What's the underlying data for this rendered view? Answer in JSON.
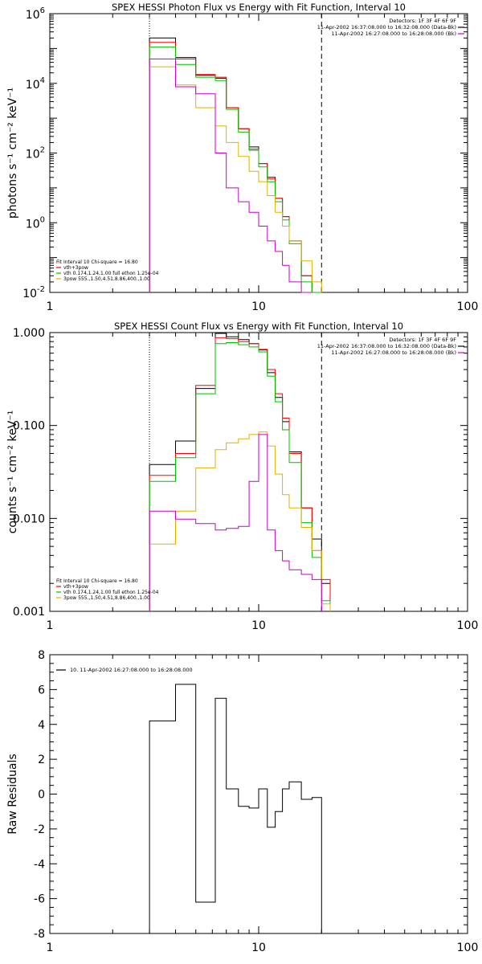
{
  "colors": {
    "black": "#000000",
    "red": "#ff0000",
    "green": "#00c000",
    "yellow": "#e0b000",
    "magenta": "#c800c8"
  },
  "chart_data": [
    {
      "type": "line",
      "title": "SPEX HESSI Photon Flux vs Energy with Fit Function, Interval 10",
      "ylabel": "photons s⁻¹ cm⁻² keV⁻¹",
      "xlabel": "",
      "x_scale": "log",
      "y_scale": "log",
      "xlim": [
        1,
        100
      ],
      "ylim": [
        0.01,
        1000000
      ],
      "x_ticks": [
        {
          "value": 1,
          "label": "1"
        },
        {
          "value": 10,
          "label": "10"
        },
        {
          "value": 100,
          "label": "100"
        }
      ],
      "y_ticks": [
        {
          "value": 0.01,
          "base": "10",
          "exp": "-2"
        },
        {
          "value": 1,
          "base": "10",
          "exp": "0"
        },
        {
          "value": 100,
          "base": "10",
          "exp": "2"
        },
        {
          "value": 10000,
          "base": "10",
          "exp": "4"
        },
        {
          "value": 1000000,
          "base": "10",
          "exp": "6"
        }
      ],
      "vlines": [
        {
          "x": 3,
          "style": "dotted"
        },
        {
          "x": 20,
          "style": "dashed"
        }
      ],
      "legend_upper": [
        {
          "text": "Detectors: 1F 3F 4F 6F 9F",
          "color": ""
        },
        {
          "text": "11-Apr-2002 16:37:08.000 to 16:32:08.000 (Data-Bk)",
          "color": "#000000"
        },
        {
          "text": "11-Apr-2002 16:27:08.000 to 16:28:08.000 (Bk)",
          "color": "#c800c8"
        }
      ],
      "legend_lower": [
        {
          "text": "Fit Interval 10   Chi-square = 16.80",
          "color": ""
        },
        {
          "text": "vth+3pow",
          "color": "#ff0000"
        },
        {
          "text": "vth 0.174,1.24,1.00  full ethon 1.25e-04",
          "color": "#00c000"
        },
        {
          "text": "3pow 555.,1.50,4.51,8.86,400.,1.00",
          "color": "#e0b000"
        }
      ],
      "bin_edges": [
        3,
        4,
        5,
        6.2,
        7,
        8,
        9,
        10,
        11,
        12,
        13,
        14,
        16,
        18,
        20,
        22
      ],
      "series": [
        {
          "name": "",
          "color": "#000000",
          "values": [
            200000,
            55000,
            17000,
            14000,
            2000,
            500,
            150,
            50,
            20,
            5,
            1.5,
            0.3,
            0.03,
            0.004,
            null
          ]
        },
        {
          "name": "vth+3pow",
          "color": "#ff0000",
          "values": [
            150000,
            50000,
            18000,
            15000,
            2000,
            500,
            130,
            50,
            18,
            5,
            1.5,
            0.3,
            0.03,
            0.004,
            null
          ]
        },
        {
          "name": "vth",
          "color": "#00c000",
          "values": [
            110000,
            35000,
            15000,
            12000,
            1800,
            400,
            120,
            40,
            15,
            4,
            1.2,
            0.25,
            0.02,
            0.003,
            null
          ]
        },
        {
          "name": "3pow",
          "color": "#e0b000",
          "values": [
            30000,
            9000,
            2000,
            600,
            200,
            80,
            30,
            15,
            6,
            2,
            0.8,
            0.3,
            0.08,
            0.02,
            null
          ]
        },
        {
          "name": "",
          "color": "#c800c8",
          "values": [
            50000,
            8000,
            5000,
            100,
            10,
            4,
            2,
            0.8,
            0.3,
            0.15,
            0.06,
            0.02,
            0.01,
            null,
            null
          ]
        }
      ]
    },
    {
      "type": "line",
      "title": "SPEX HESSI Count Flux vs Energy with Fit Function, Interval 10",
      "ylabel": "counts s⁻¹ cm⁻² keV⁻¹",
      "xlabel": "",
      "x_scale": "log",
      "y_scale": "log",
      "xlim": [
        1,
        100
      ],
      "ylim": [
        0.001,
        1.0
      ],
      "x_ticks": [
        {
          "value": 1,
          "label": "1"
        },
        {
          "value": 10,
          "label": "10"
        },
        {
          "value": 100,
          "label": "100"
        }
      ],
      "y_ticks": [
        {
          "value": 0.001,
          "label": "0.001"
        },
        {
          "value": 0.01,
          "label": "0.010"
        },
        {
          "value": 0.1,
          "label": "0.100"
        },
        {
          "value": 1.0,
          "label": "1.000"
        }
      ],
      "vlines": [
        {
          "x": 3,
          "style": "dotted"
        },
        {
          "x": 20,
          "style": "dashed"
        }
      ],
      "legend_upper": [
        {
          "text": "Detectors: 1F 3F 4F 6F 9F",
          "color": ""
        },
        {
          "text": "11-Apr-2002 16:37:08.000 to 16:32:08.000 (Data-Bk)",
          "color": "#000000"
        },
        {
          "text": "11-Apr-2002 16:27:08.000 to 16:28:08.000 (Bk)",
          "color": "#c800c8"
        }
      ],
      "legend_lower": [
        {
          "text": "Fit Interval 10   Chi-square = 16.80",
          "color": ""
        },
        {
          "text": "vth+3pow",
          "color": "#ff0000"
        },
        {
          "text": "vth 0.174,1.24,1.00  full ethon 1.25e-04",
          "color": "#00c000"
        },
        {
          "text": "3pow 555.,1.50,4.51,8.86,400.,1.00",
          "color": "#e0b000"
        }
      ],
      "bin_edges": [
        3,
        4,
        5,
        6.2,
        7,
        8,
        9,
        10,
        11,
        12,
        13,
        14,
        16,
        18,
        20,
        22
      ],
      "series": [
        {
          "name": "",
          "color": "#000000",
          "values": [
            0.038,
            0.068,
            0.25,
            0.98,
            0.9,
            0.84,
            0.76,
            0.65,
            0.37,
            0.2,
            0.11,
            0.052,
            0.013,
            0.006,
            0.002
          ]
        },
        {
          "name": "vth+3pow",
          "color": "#ff0000",
          "values": [
            0.029,
            0.05,
            0.27,
            0.88,
            0.86,
            0.8,
            0.76,
            0.66,
            0.4,
            0.22,
            0.12,
            0.05,
            0.013,
            0.0045,
            0.0022
          ]
        },
        {
          "name": "vth",
          "color": "#00c000",
          "values": [
            0.025,
            0.045,
            0.22,
            0.76,
            0.78,
            0.74,
            0.7,
            0.62,
            0.34,
            0.18,
            0.09,
            0.04,
            0.009,
            0.0038,
            0.0013
          ]
        },
        {
          "name": "3pow",
          "color": "#e0b000",
          "values": [
            0.0053,
            0.012,
            0.035,
            0.055,
            0.065,
            0.072,
            0.08,
            0.085,
            0.06,
            0.03,
            0.018,
            0.013,
            0.008,
            0.0045,
            0.0012
          ]
        },
        {
          "name": "",
          "color": "#c800c8",
          "values": [
            0.012,
            0.0098,
            0.0088,
            0.0075,
            0.0078,
            0.0082,
            0.025,
            0.08,
            0.0075,
            0.0045,
            0.0035,
            0.0028,
            0.0025,
            0.0022,
            null
          ]
        }
      ]
    },
    {
      "type": "line",
      "title": "",
      "ylabel": "Raw Residuals",
      "xlabel": "",
      "x_scale": "log",
      "y_scale": "linear",
      "xlim": [
        1,
        100
      ],
      "ylim": [
        -8,
        8
      ],
      "x_ticks": [
        {
          "value": 1,
          "label": "1"
        },
        {
          "value": 10,
          "label": "10"
        },
        {
          "value": 100,
          "label": "100"
        }
      ],
      "y_ticks": [
        {
          "value": -8,
          "label": "-8"
        },
        {
          "value": -6,
          "label": "-6"
        },
        {
          "value": -4,
          "label": "-4"
        },
        {
          "value": -2,
          "label": "-2"
        },
        {
          "value": 0,
          "label": "0"
        },
        {
          "value": 2,
          "label": "2"
        },
        {
          "value": 4,
          "label": "4"
        },
        {
          "value": 6,
          "label": "6"
        },
        {
          "value": 8,
          "label": "8"
        }
      ],
      "legend_upper": [
        {
          "text": "10. 11-Apr-2002 16:27:08.000 to 16:28:08.000",
          "color": "#000000"
        }
      ],
      "bin_edges": [
        3,
        4,
        5,
        6.2,
        7,
        8,
        9,
        10,
        11,
        12,
        13,
        14,
        16,
        18,
        20
      ],
      "series": [
        {
          "name": "",
          "color": "#000000",
          "values": [
            4.2,
            6.3,
            -6.2,
            5.5,
            0.3,
            -0.7,
            -0.8,
            0.3,
            -1.9,
            -1.0,
            0.3,
            0.7,
            -0.3,
            -0.2
          ]
        }
      ]
    }
  ]
}
